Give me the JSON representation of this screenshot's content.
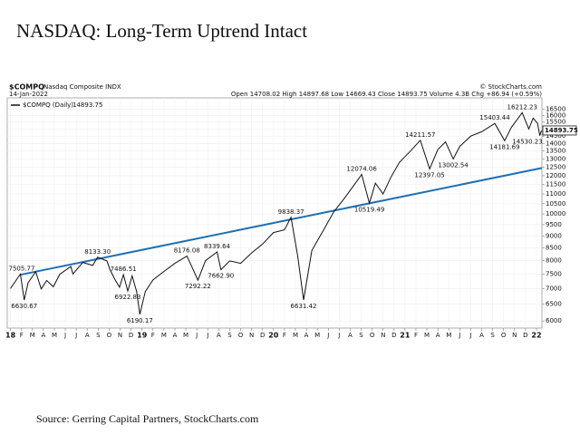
{
  "chart_data": {
    "type": "line",
    "title": "NASDAQ: Long-Term Uptrend Intact",
    "source": "Source: Gerring Capital Partners, StockCharts.com",
    "header": {
      "symbol": "$COMPQ",
      "name": "Nasdaq Composite INDX",
      "date": "14-Jan-2022",
      "quote": "Open 14708.02 High 14897.68 Low 14669.43 Close 14893.75 Volume 4.3B Chg +86.94 (+0.59%)",
      "credit": "© StockCharts.com"
    },
    "log_scale": true,
    "grid": true,
    "series": [
      {
        "name": "$COMPQ (Daily)",
        "color": "#111111",
        "x": [
          0,
          0.9,
          1.25,
          1.6,
          2.3,
          2.8,
          3.3,
          3.9,
          4.5,
          5.5,
          5.7,
          6.6,
          7.5,
          7.95,
          8.8,
          9.1,
          9.5,
          9.95,
          10.3,
          10.7,
          11.1,
          11.5,
          11.8,
          12.3,
          13,
          14,
          15,
          16.1,
          17.1,
          17.8,
          18.85,
          19.2,
          20,
          21,
          22,
          23,
          24,
          25,
          25.6,
          26.2,
          26.75,
          27.5,
          28.5,
          29.5,
          30.5,
          31.5,
          32.05,
          32.75,
          33.3,
          34,
          34.7,
          35.5,
          36.5,
          37.4,
          38.25,
          39,
          39.7,
          40.4,
          41,
          42,
          43,
          44.2,
          45.1,
          45.7,
          46.7,
          47.3,
          47.7,
          48.1,
          48.3,
          48.45
        ],
        "values": [
          7006,
          7505.77,
          6630.67,
          7200,
          7588,
          6993,
          7280,
          7066,
          7500,
          7780,
          7510,
          7932,
          7820,
          8133.3,
          7990,
          7650,
          7330,
          7050,
          7486.51,
          6922.83,
          7440,
          6910,
          6190.17,
          6900,
          7300,
          7600,
          7900,
          8176.08,
          7292.22,
          8000,
          8339.64,
          7662.9,
          7990,
          7900,
          8300,
          8660,
          9150,
          9270,
          9838.37,
          8200,
          6631.42,
          8400,
          9200,
          10100,
          10800,
          11600,
          12074.06,
          10519.49,
          11580,
          11000,
          11900,
          12800,
          13500,
          14211.57,
          12397.05,
          13600,
          14100,
          13002.54,
          13800,
          14500,
          14800,
          15403.44,
          14181.69,
          15100,
          16212.23,
          15000,
          15800,
          15400,
          14530.23,
          14893.75
        ]
      }
    ],
    "trendline": {
      "color": "#1f6fb5",
      "x": [
        0.9,
        48.5
      ],
      "values": [
        7480,
        12450
      ]
    },
    "annotations": [
      {
        "x": 0.9,
        "value": 7505.77,
        "label": "7505.77"
      },
      {
        "x": 1.25,
        "value": 6630.67,
        "label": "6630.67"
      },
      {
        "x": 7.95,
        "value": 8133.3,
        "label": "8133.30"
      },
      {
        "x": 10.3,
        "value": 7486.51,
        "label": "7486.51"
      },
      {
        "x": 10.7,
        "value": 6922.83,
        "label": "6922.83"
      },
      {
        "x": 11.8,
        "value": 6190.17,
        "label": "6190.17"
      },
      {
        "x": 16.1,
        "value": 8176.08,
        "label": "8176.08"
      },
      {
        "x": 17.1,
        "value": 7292.22,
        "label": "7292.22"
      },
      {
        "x": 18.85,
        "value": 8339.64,
        "label": "8339.64"
      },
      {
        "x": 19.2,
        "value": 7662.9,
        "label": "7662.90"
      },
      {
        "x": 25.6,
        "value": 9838.37,
        "label": "9838.37"
      },
      {
        "x": 26.75,
        "value": 6631.42,
        "label": "6631.42"
      },
      {
        "x": 32.05,
        "value": 12074.06,
        "label": "12074.06"
      },
      {
        "x": 32.75,
        "value": 10519.49,
        "label": "10519.49"
      },
      {
        "x": 37.4,
        "value": 14211.57,
        "label": "14211.57"
      },
      {
        "x": 38.25,
        "value": 12397.05,
        "label": "12397.05"
      },
      {
        "x": 40.4,
        "value": 13002.54,
        "label": "13002.54"
      },
      {
        "x": 44.2,
        "value": 15403.44,
        "label": "15403.44"
      },
      {
        "x": 45.1,
        "value": 14181.69,
        "label": "14181.69"
      },
      {
        "x": 46.7,
        "value": 16212.23,
        "label": "16212.23"
      },
      {
        "x": 48.3,
        "value": 14530.23,
        "label": "14530.23"
      }
    ],
    "xlim": [
      -0.3,
      48.5
    ],
    "xticks": [
      {
        "value": 0,
        "label": "18"
      },
      {
        "value": 1,
        "label": "F"
      },
      {
        "value": 2,
        "label": "M"
      },
      {
        "value": 3,
        "label": "A"
      },
      {
        "value": 4,
        "label": "M"
      },
      {
        "value": 5,
        "label": "J"
      },
      {
        "value": 6,
        "label": "J"
      },
      {
        "value": 7,
        "label": "A"
      },
      {
        "value": 8,
        "label": "S"
      },
      {
        "value": 9,
        "label": "O"
      },
      {
        "value": 10,
        "label": "N"
      },
      {
        "value": 11,
        "label": "D"
      },
      {
        "value": 12,
        "label": "19"
      },
      {
        "value": 13,
        "label": "F"
      },
      {
        "value": 14,
        "label": "M"
      },
      {
        "value": 15,
        "label": "A"
      },
      {
        "value": 16,
        "label": "M"
      },
      {
        "value": 17,
        "label": "J"
      },
      {
        "value": 18,
        "label": "J"
      },
      {
        "value": 19,
        "label": "A"
      },
      {
        "value": 20,
        "label": "S"
      },
      {
        "value": 21,
        "label": "O"
      },
      {
        "value": 22,
        "label": "N"
      },
      {
        "value": 23,
        "label": "D"
      },
      {
        "value": 24,
        "label": "20"
      },
      {
        "value": 25,
        "label": "F"
      },
      {
        "value": 26,
        "label": "M"
      },
      {
        "value": 27,
        "label": "A"
      },
      {
        "value": 28,
        "label": "M"
      },
      {
        "value": 29,
        "label": "J"
      },
      {
        "value": 30,
        "label": "J"
      },
      {
        "value": 31,
        "label": "A"
      },
      {
        "value": 32,
        "label": "S"
      },
      {
        "value": 33,
        "label": "O"
      },
      {
        "value": 34,
        "label": "N"
      },
      {
        "value": 35,
        "label": "D"
      },
      {
        "value": 36,
        "label": "21"
      },
      {
        "value": 37,
        "label": "F"
      },
      {
        "value": 38,
        "label": "M"
      },
      {
        "value": 39,
        "label": "A"
      },
      {
        "value": 40,
        "label": "M"
      },
      {
        "value": 41,
        "label": "J"
      },
      {
        "value": 42,
        "label": "J"
      },
      {
        "value": 43,
        "label": "A"
      },
      {
        "value": 44,
        "label": "S"
      },
      {
        "value": 45,
        "label": "O"
      },
      {
        "value": 46,
        "label": "N"
      },
      {
        "value": 47,
        "label": "D"
      },
      {
        "value": 48,
        "label": "22"
      }
    ],
    "ylim": [
      5800,
      17400
    ],
    "yticks": [
      6000,
      6500,
      7000,
      7500,
      8000,
      8500,
      9000,
      9500,
      10000,
      10500,
      11000,
      11500,
      12000,
      12500,
      13000,
      13500,
      14000,
      14500,
      15000,
      15500,
      16000,
      16500
    ]
  }
}
